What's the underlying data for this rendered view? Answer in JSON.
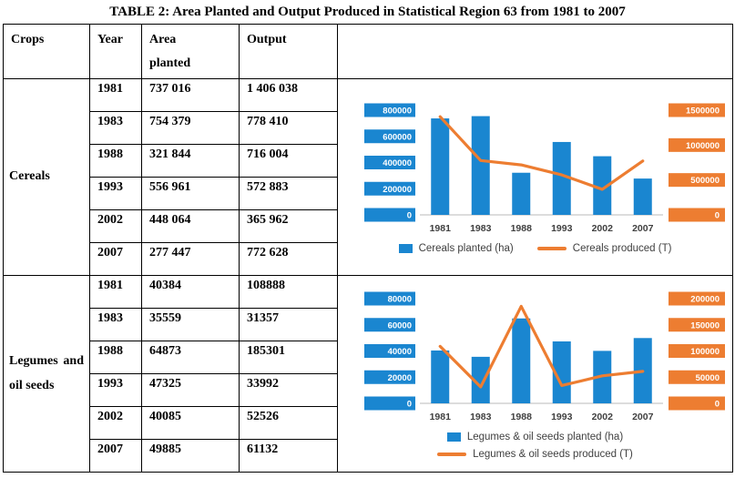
{
  "page": {
    "title": "TABLE 2: Area Planted and Output Produced in Statistical Region 63 from 1981 to 2007"
  },
  "table": {
    "headers": {
      "crops": "Crops",
      "year": "Year",
      "area": "Area planted",
      "output": "Output"
    },
    "groups": [
      {
        "crop": "Cereals",
        "rows": [
          {
            "year": "1981",
            "area": "737 016",
            "output": "1 406 038"
          },
          {
            "year": "1983",
            "area": "754 379",
            "output": "778 410"
          },
          {
            "year": "1988",
            "area": "321 844",
            "output": "716 004"
          },
          {
            "year": "1993",
            "area": "556 961",
            "output": "572 883"
          },
          {
            "year": "2002",
            "area": "448 064",
            "output": "365 962"
          },
          {
            "year": "2007",
            "area": "277 447",
            "output": "772 628"
          }
        ]
      },
      {
        "crop": "Legumes and oil seeds",
        "rows": [
          {
            "year": "1981",
            "area": "40384",
            "output": "108888"
          },
          {
            "year": "1983",
            "area": "35559",
            "output": "31357"
          },
          {
            "year": "1988",
            "area": "64873",
            "output": "185301"
          },
          {
            "year": "1993",
            "area": "47325",
            "output": "33992"
          },
          {
            "year": "2002",
            "area": "40085",
            "output": "52526"
          },
          {
            "year": "2007",
            "area": "49885",
            "output": "61132"
          }
        ]
      }
    ]
  },
  "chart_data": [
    {
      "type": "combo",
      "title": "",
      "categories": [
        "1981",
        "1983",
        "1988",
        "1993",
        "2002",
        "2007"
      ],
      "series": [
        {
          "name": "Cereals planted (ha)",
          "kind": "bar",
          "axis": "left",
          "color": "#1A86D0",
          "values": [
            737016,
            754379,
            321844,
            556961,
            448064,
            277447
          ]
        },
        {
          "name": "Cereals produced (T)",
          "kind": "line",
          "axis": "right",
          "color": "#ED7D31",
          "values": [
            1406038,
            778410,
            716004,
            572883,
            365962,
            772628
          ]
        }
      ],
      "left_axis": {
        "min": 0,
        "max": 800000,
        "ticks": [
          0,
          200000,
          400000,
          600000,
          800000
        ]
      },
      "right_axis": {
        "min": 0,
        "max": 1500000,
        "ticks": [
          0,
          500000,
          1000000,
          1500000
        ]
      },
      "grid": false,
      "legend_position": "bottom",
      "legend_layout": "inline"
    },
    {
      "type": "combo",
      "title": "",
      "categories": [
        "1981",
        "1983",
        "1988",
        "1993",
        "2002",
        "2007"
      ],
      "series": [
        {
          "name": "Legumes & oil seeds planted (ha)",
          "kind": "bar",
          "axis": "left",
          "color": "#1A86D0",
          "values": [
            40384,
            35559,
            64873,
            47325,
            40085,
            49885
          ]
        },
        {
          "name": "Legumes & oil seeds produced (T)",
          "kind": "line",
          "axis": "right",
          "color": "#ED7D31",
          "values": [
            108888,
            31357,
            185301,
            33992,
            52526,
            61132
          ]
        }
      ],
      "left_axis": {
        "min": 0,
        "max": 80000,
        "ticks": [
          0,
          20000,
          40000,
          60000,
          80000
        ]
      },
      "right_axis": {
        "min": 0,
        "max": 200000,
        "ticks": [
          0,
          50000,
          100000,
          150000,
          200000
        ]
      },
      "grid": false,
      "legend_position": "bottom",
      "legend_layout": "stacked"
    }
  ],
  "colors": {
    "bar_blue": "#1A86D0",
    "line_orange": "#ED7D31",
    "axis_label_text": "#ffffff",
    "x_label_text": "#404040",
    "border": "#000000"
  }
}
